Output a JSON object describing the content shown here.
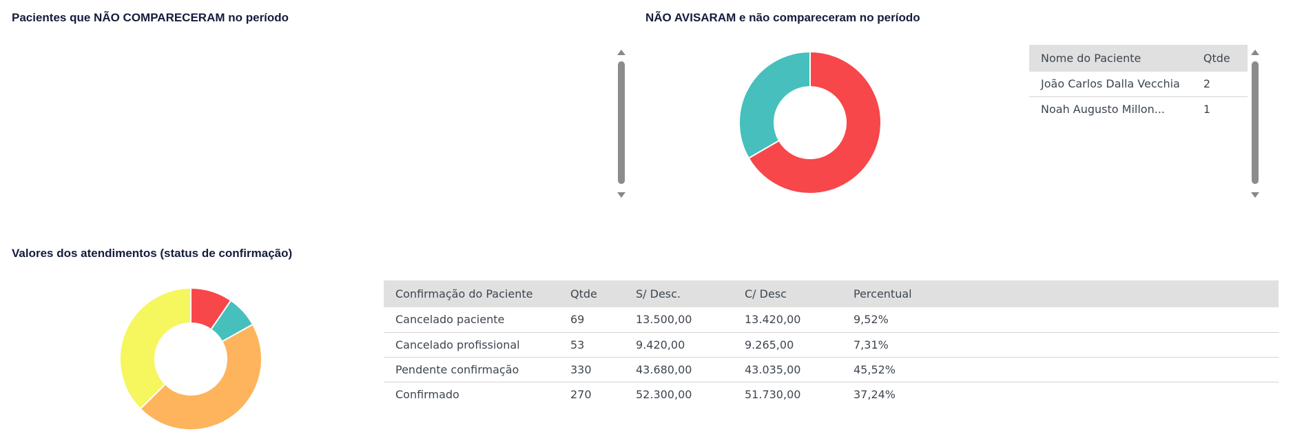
{
  "no_show_section": {
    "title": "Pacientes que NÃO COMPARECERAM no período"
  },
  "no_notice_section": {
    "title": "NÃO AVISARAM e não compareceram no período",
    "table": {
      "headers": [
        "Nome do Paciente",
        "Qtde"
      ],
      "rows": [
        [
          "João Carlos Dalla Vecchia",
          "2"
        ],
        [
          "Noah Augusto Millon...",
          "1"
        ]
      ]
    }
  },
  "values_section": {
    "title": "Valores dos atendimentos (status de confirmação)",
    "table": {
      "headers": [
        "Confirmação do Paciente",
        "Qtde",
        "S/ Desc.",
        "C/ Desc",
        "Percentual"
      ],
      "rows": [
        [
          "Cancelado paciente",
          "69",
          "13.500,00",
          "13.420,00",
          "9,52%"
        ],
        [
          "Cancelado profissional",
          "53",
          "9.420,00",
          "9.265,00",
          "7,31%"
        ],
        [
          "Pendente confirmação",
          "330",
          "43.680,00",
          "43.035,00",
          "45,52%"
        ],
        [
          "Confirmado",
          "270",
          "52.300,00",
          "51.730,00",
          "37,24%"
        ]
      ]
    }
  },
  "chart_data": [
    {
      "type": "pie",
      "donut": true,
      "slices": [
        {
          "label": "João Carlos Dalla Vecchia",
          "value": 2,
          "color": "#f7474a"
        },
        {
          "label": "Noah Augusto Millon...",
          "value": 1,
          "color": "#46bfbd"
        }
      ]
    },
    {
      "type": "pie",
      "donut": true,
      "slices": [
        {
          "label": "Cancelado paciente",
          "value": 69,
          "color": "#f7474a"
        },
        {
          "label": "Cancelado profissional",
          "value": 53,
          "color": "#46bfbd"
        },
        {
          "label": "Pendente confirmação",
          "value": 330,
          "color": "#fdb45c"
        },
        {
          "label": "Confirmado",
          "value": 270,
          "color": "#f6f65e"
        }
      ]
    }
  ],
  "icons": {
    "scroll_up": "scroll-up-arrow-icon",
    "scroll_down": "scroll-down-arrow-icon"
  }
}
